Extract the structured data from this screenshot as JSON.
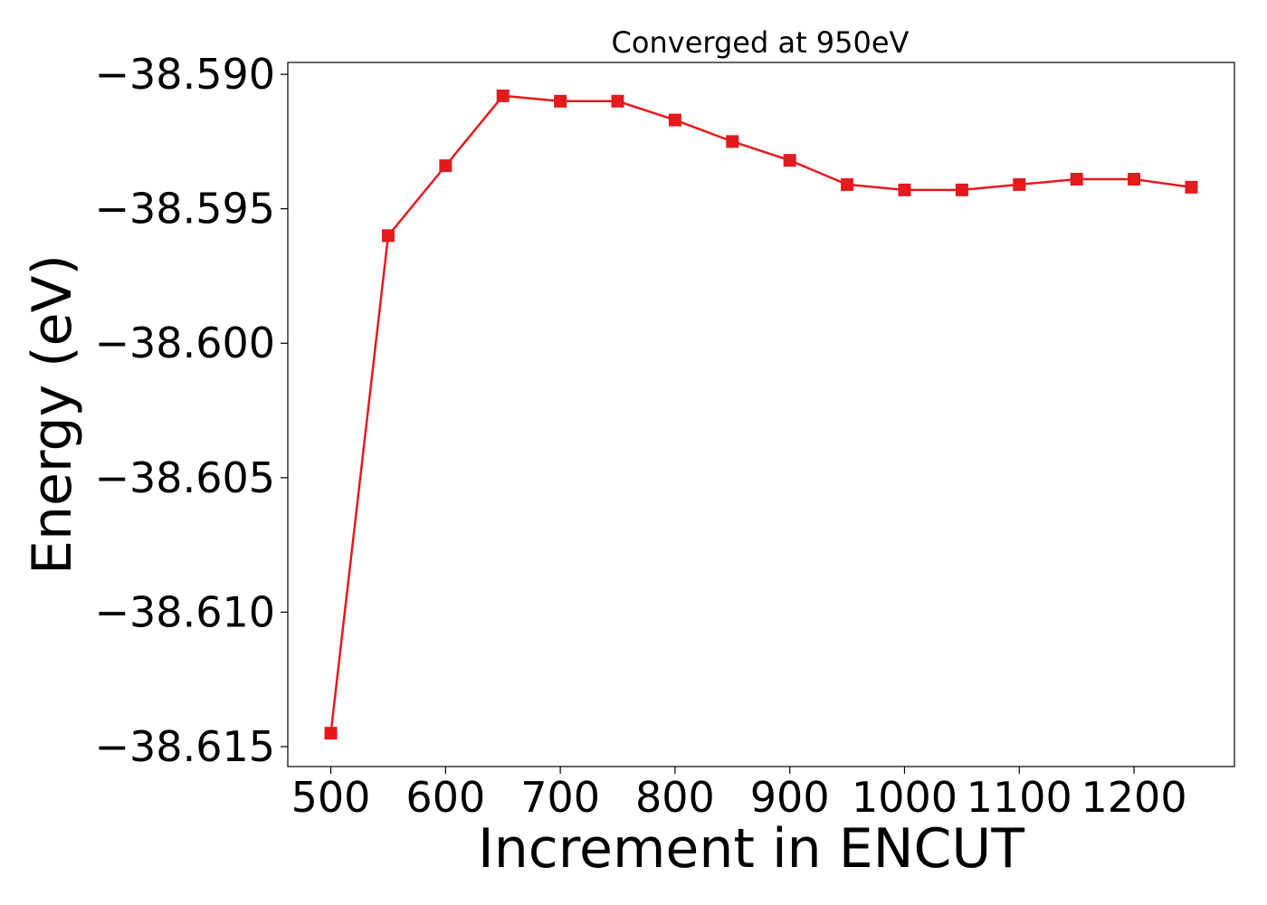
{
  "chart_data": {
    "type": "line",
    "title": "Converged at 950eV",
    "xlabel": "Increment in ENCUT",
    "ylabel": "Energy (eV)",
    "x": [
      500,
      550,
      600,
      650,
      700,
      750,
      800,
      850,
      900,
      950,
      1000,
      1050,
      1100,
      1150,
      1200,
      1250
    ],
    "series": [
      {
        "values": [
          -38.6145,
          -38.596,
          -38.5934,
          -38.5908,
          -38.591,
          -38.591,
          -38.5917,
          -38.5925,
          -38.5932,
          -38.5941,
          -38.5943,
          -38.5943,
          -38.5941,
          -38.5939,
          -38.5939,
          -38.5942
        ],
        "color": "#e41a1c",
        "marker": "square"
      }
    ],
    "xlim": [
      462.5,
      1287.5
    ],
    "ylim": [
      -38.61574,
      -38.58956
    ],
    "xticks": [
      500,
      600,
      700,
      800,
      900,
      1000,
      1100,
      1200
    ],
    "xtick_labels": [
      "500",
      "600",
      "700",
      "800",
      "900",
      "1000",
      "1100",
      "1200"
    ],
    "yticks": [
      -38.59,
      -38.595,
      -38.6,
      -38.605,
      -38.61,
      -38.615
    ],
    "ytick_labels": [
      "−38.590",
      "−38.595",
      "−38.600",
      "−38.605",
      "−38.610",
      "−38.615"
    ],
    "grid": false,
    "legend": "none"
  }
}
